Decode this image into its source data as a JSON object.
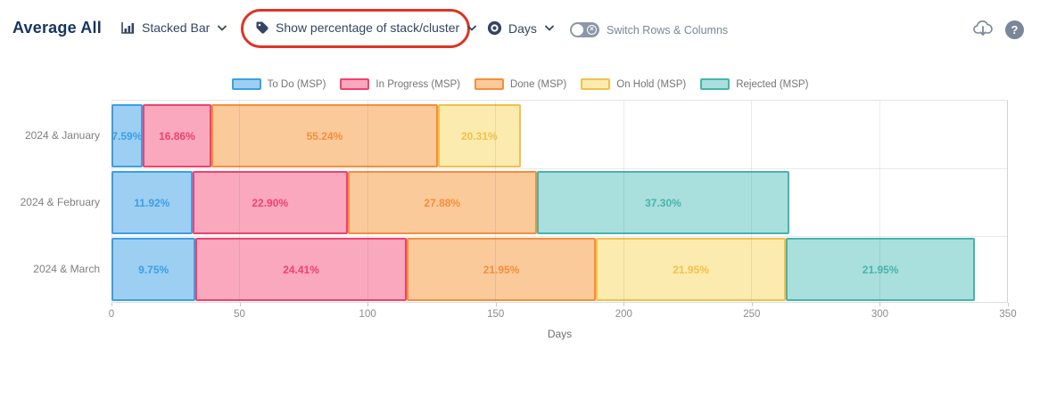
{
  "header": {
    "title": "Average All",
    "chart_type_dropdown": {
      "label": "Stacked Bar"
    },
    "percentage_dropdown": {
      "label": "Show percentage of stack/cluster"
    },
    "unit_dropdown": {
      "label": "Days"
    },
    "switch_toggle": {
      "label": "Switch Rows & Columns",
      "state": "off",
      "off_glyph": "×"
    },
    "help_glyph": "?",
    "annotation_color": "#DC3426",
    "toolbar_text_color": "#344563",
    "icon_color": "#7A869A"
  },
  "chart_data": {
    "type": "bar",
    "orientation": "horizontal",
    "stacked": true,
    "xlabel": "Days",
    "xlim": [
      0,
      350
    ],
    "x_ticks": [
      0,
      50,
      100,
      150,
      200,
      250,
      300,
      350
    ],
    "grid": true,
    "legend_position": "top",
    "categories": [
      "2024 & January",
      "2024 & February",
      "2024 & March"
    ],
    "totals_days": [
      160,
      265,
      337.6
    ],
    "series": [
      {
        "name": "To Do (MSP)",
        "fill": "#9DCFF3",
        "border": "#3B9FE6",
        "values_days": [
          12.1,
          31.6,
          32.9
        ],
        "labels": [
          "7.59%",
          "11.92%",
          "9.75%"
        ]
      },
      {
        "name": "In Progress (MSP)",
        "fill": "#F9A8BE",
        "border": "#F2416D",
        "values_days": [
          27.0,
          60.7,
          82.4
        ],
        "labels": [
          "16.86%",
          "22.90%",
          "24.41%"
        ]
      },
      {
        "name": "Done (MSP)",
        "fill": "#FBCA9B",
        "border": "#F78E3A",
        "values_days": [
          88.4,
          73.9,
          74.1
        ],
        "labels": [
          "55.24%",
          "27.88%",
          "21.95%"
        ]
      },
      {
        "name": "On Hold (MSP)",
        "fill": "#FCEBAE",
        "border": "#F2C04E",
        "values_days": [
          32.5,
          0,
          74.1
        ],
        "labels": [
          "20.31%",
          "",
          "21.95%"
        ]
      },
      {
        "name": "Rejected (MSP)",
        "fill": "#A9DFDC",
        "border": "#45B5AD",
        "values_days": [
          0,
          98.8,
          74.1
        ],
        "labels": [
          "",
          "37.30%",
          "21.95%"
        ]
      }
    ]
  }
}
